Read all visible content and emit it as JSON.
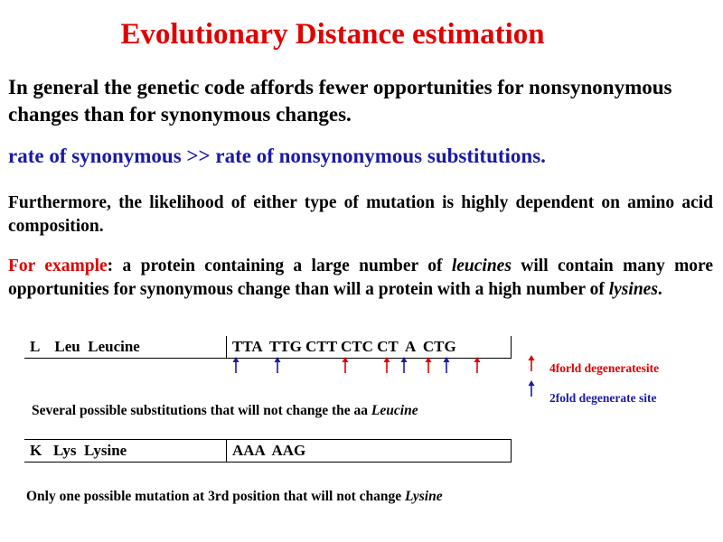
{
  "title": "Evolutionary Distance estimation",
  "intro": "In general the genetic code affords fewer opportunities for nonsynonymous changes than for synonymous changes.",
  "rate_statement": "rate of synonymous >> rate of nonsynonymous substitutions.",
  "furthermore": "Furthermore, the likelihood of either type of mutation is highly dependent on amino acid composition.",
  "example": {
    "lead": "For example",
    "part1": ": a protein containing a large number of ",
    "leucines": "leucines",
    "part2": " will contain many more opportunities  for synonymous  change than will a protein with a high number of ",
    "lysines": "lysines",
    "end": "."
  },
  "leucine_row": {
    "name": "L    Leu  Leucine",
    "codons": "TTA  TTG CTT CTC CT  A  CTG"
  },
  "leucine_note": {
    "text": "Several possible substitutions that will not change the aa ",
    "aa": "Leucine"
  },
  "lysine_row": {
    "name": "K   Lys  Lysine",
    "codons": "AAA  AAG"
  },
  "lysine_note": {
    "text": "Only one possible mutation  at 3rd position  that will not change ",
    "aa": "Lysine"
  },
  "legend": {
    "fourfold": "4forld degeneratesite",
    "twofold": "2fold degenerate site"
  },
  "colors": {
    "title": "#e00000",
    "rate": "#1a1aa6",
    "fourfold_arrow": "#e00000",
    "twofold_arrow": "#1a1aa6"
  },
  "arrows": [
    {
      "type": "twofold"
    },
    {
      "type": "twofold"
    },
    {
      "type": "fourfold"
    },
    {
      "type": "fourfold"
    },
    {
      "type": "twofold"
    },
    {
      "type": "fourfold"
    },
    {
      "type": "twofold"
    },
    {
      "type": "fourfold"
    }
  ]
}
